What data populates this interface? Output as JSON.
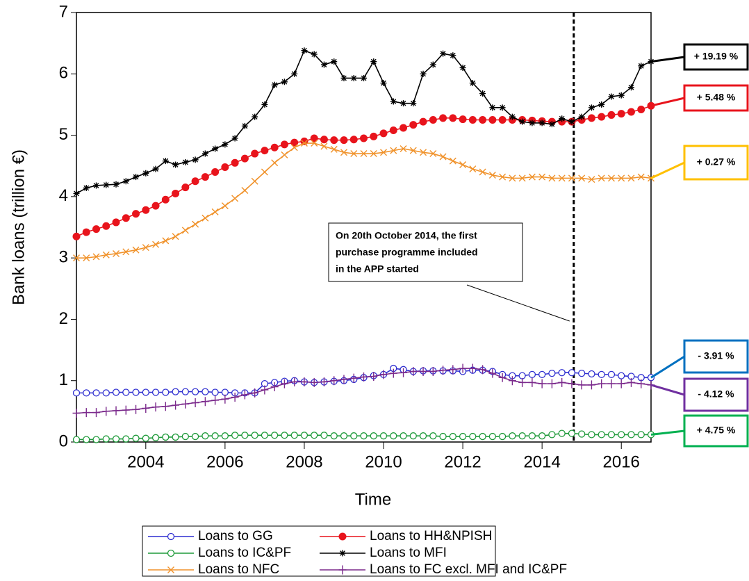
{
  "chart_data": {
    "type": "line",
    "xlabel": "Time",
    "ylabel": "Bank loans (trillion €)",
    "xlim": [
      2002.25,
      2016.75
    ],
    "xticks": [
      2004,
      2006,
      2008,
      2010,
      2012,
      2014,
      2016
    ],
    "ylim": [
      0,
      7
    ],
    "yticks": [
      0,
      1,
      2,
      3,
      4,
      5,
      6,
      7
    ],
    "vline_x": 2014.8,
    "annotation": [
      "On 20th October 2014, the first",
      "purchase programme included",
      "in the APP started"
    ],
    "x": [
      2002.25,
      2002.5,
      2002.75,
      2003,
      2003.25,
      2003.5,
      2003.75,
      2004,
      2004.25,
      2004.5,
      2004.75,
      2005,
      2005.25,
      2005.5,
      2005.75,
      2006,
      2006.25,
      2006.5,
      2006.75,
      2007,
      2007.25,
      2007.5,
      2007.75,
      2008,
      2008.25,
      2008.5,
      2008.75,
      2009,
      2009.25,
      2009.5,
      2009.75,
      2010,
      2010.25,
      2010.5,
      2010.75,
      2011,
      2011.25,
      2011.5,
      2011.75,
      2012,
      2012.25,
      2012.5,
      2012.75,
      2013,
      2013.25,
      2013.5,
      2013.75,
      2014,
      2014.25,
      2014.5,
      2014.75,
      2015,
      2015.25,
      2015.5,
      2015.75,
      2016,
      2016.25,
      2016.5,
      2016.75
    ],
    "series": [
      {
        "name": "Loans to GG",
        "color": "#2f2fd0",
        "marker": "open-circle",
        "callout": "- 3.91 %",
        "callout_color": "#0070c0",
        "values": [
          0.8,
          0.8,
          0.8,
          0.8,
          0.81,
          0.81,
          0.81,
          0.81,
          0.81,
          0.81,
          0.82,
          0.82,
          0.82,
          0.82,
          0.81,
          0.81,
          0.8,
          0.8,
          0.8,
          0.95,
          0.97,
          0.99,
          1.0,
          0.98,
          0.97,
          0.98,
          0.99,
          1.0,
          1.02,
          1.05,
          1.08,
          1.1,
          1.2,
          1.18,
          1.15,
          1.16,
          1.16,
          1.16,
          1.16,
          1.15,
          1.17,
          1.17,
          1.15,
          1.1,
          1.08,
          1.08,
          1.1,
          1.1,
          1.12,
          1.13,
          1.13,
          1.12,
          1.11,
          1.1,
          1.1,
          1.08,
          1.07,
          1.05,
          1.05
        ]
      },
      {
        "name": "Loans to HH&NPISH",
        "color": "#e8141c",
        "marker": "filled-circle",
        "callout": "+ 5.48 %",
        "callout_color": "#e8141c",
        "values": [
          3.35,
          3.42,
          3.47,
          3.52,
          3.58,
          3.65,
          3.72,
          3.78,
          3.85,
          3.95,
          4.05,
          4.15,
          4.25,
          4.32,
          4.4,
          4.48,
          4.55,
          4.62,
          4.7,
          4.75,
          4.8,
          4.85,
          4.88,
          4.9,
          4.95,
          4.93,
          4.92,
          4.92,
          4.93,
          4.95,
          4.98,
          5.03,
          5.08,
          5.12,
          5.17,
          5.22,
          5.25,
          5.28,
          5.28,
          5.26,
          5.25,
          5.25,
          5.25,
          5.25,
          5.25,
          5.25,
          5.24,
          5.23,
          5.22,
          5.22,
          5.22,
          5.25,
          5.28,
          5.3,
          5.33,
          5.35,
          5.38,
          5.42,
          5.48
        ]
      },
      {
        "name": "Loans to IC&PF",
        "color": "#1f9a3a",
        "marker": "open-circle",
        "callout": "+ 4.75 %",
        "callout_color": "#00b050",
        "values": [
          0.04,
          0.04,
          0.04,
          0.05,
          0.05,
          0.05,
          0.06,
          0.06,
          0.07,
          0.08,
          0.08,
          0.09,
          0.09,
          0.1,
          0.1,
          0.1,
          0.11,
          0.11,
          0.11,
          0.11,
          0.11,
          0.11,
          0.11,
          0.11,
          0.11,
          0.11,
          0.1,
          0.1,
          0.1,
          0.1,
          0.1,
          0.1,
          0.1,
          0.1,
          0.1,
          0.1,
          0.1,
          0.09,
          0.09,
          0.09,
          0.09,
          0.09,
          0.09,
          0.09,
          0.1,
          0.1,
          0.1,
          0.1,
          0.12,
          0.14,
          0.14,
          0.13,
          0.12,
          0.12,
          0.12,
          0.12,
          0.12,
          0.12,
          0.12
        ]
      },
      {
        "name": "Loans to MFI",
        "color": "#000000",
        "marker": "asterisk",
        "callout": "+ 19.19 %",
        "callout_color": "#000000",
        "values": [
          4.05,
          4.14,
          4.18,
          4.19,
          4.2,
          4.25,
          4.32,
          4.38,
          4.45,
          4.58,
          4.52,
          4.56,
          4.6,
          4.7,
          4.78,
          4.85,
          4.95,
          5.15,
          5.3,
          5.5,
          5.82,
          5.87,
          6.0,
          6.38,
          6.32,
          6.15,
          6.2,
          5.93,
          5.93,
          5.93,
          6.2,
          5.85,
          5.55,
          5.52,
          5.52,
          6.0,
          6.15,
          6.33,
          6.3,
          6.1,
          5.85,
          5.68,
          5.45,
          5.45,
          5.3,
          5.22,
          5.2,
          5.2,
          5.18,
          5.27,
          5.22,
          5.3,
          5.45,
          5.5,
          5.63,
          5.65,
          5.78,
          6.13,
          6.2
        ]
      },
      {
        "name": "Loans to NFC",
        "color": "#f0922b",
        "marker": "cross",
        "callout": "+ 0.27 %",
        "callout_color": "#ffc000",
        "callout_text_color": "#e58a1f",
        "values": [
          3.0,
          3.0,
          3.02,
          3.05,
          3.07,
          3.1,
          3.13,
          3.17,
          3.22,
          3.28,
          3.35,
          3.45,
          3.55,
          3.65,
          3.75,
          3.85,
          3.97,
          4.1,
          4.25,
          4.4,
          4.55,
          4.68,
          4.8,
          4.87,
          4.87,
          4.82,
          4.77,
          4.72,
          4.7,
          4.7,
          4.7,
          4.72,
          4.75,
          4.78,
          4.75,
          4.72,
          4.7,
          4.65,
          4.58,
          4.52,
          4.45,
          4.4,
          4.35,
          4.32,
          4.3,
          4.3,
          4.32,
          4.32,
          4.3,
          4.3,
          4.3,
          4.3,
          4.28,
          4.3,
          4.3,
          4.3,
          4.3,
          4.32,
          4.3
        ]
      },
      {
        "name": "Loans to FC excl. MFI and IC&PF",
        "color": "#7b2a8c",
        "marker": "plus",
        "callout": "- 4.12 %",
        "callout_color": "#7030a0",
        "values": [
          0.47,
          0.48,
          0.48,
          0.5,
          0.51,
          0.52,
          0.53,
          0.55,
          0.57,
          0.58,
          0.6,
          0.62,
          0.64,
          0.66,
          0.68,
          0.7,
          0.73,
          0.77,
          0.8,
          0.85,
          0.9,
          0.95,
          0.98,
          0.98,
          0.97,
          0.98,
          1.0,
          1.02,
          1.04,
          1.06,
          1.07,
          1.1,
          1.12,
          1.13,
          1.15,
          1.15,
          1.15,
          1.17,
          1.18,
          1.2,
          1.2,
          1.18,
          1.12,
          1.05,
          1.0,
          0.97,
          0.97,
          0.95,
          0.95,
          0.97,
          0.95,
          0.93,
          0.93,
          0.95,
          0.95,
          0.95,
          0.97,
          0.95,
          0.93
        ]
      }
    ]
  }
}
